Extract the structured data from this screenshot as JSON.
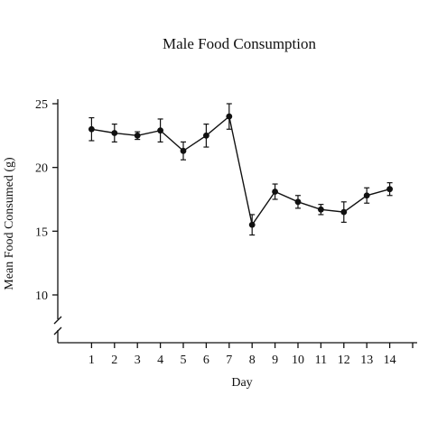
{
  "chart_data": {
    "type": "line",
    "title": "Male Food Consumption",
    "xlabel": "Day",
    "ylabel": "Mean Food Consumed (g)",
    "x": [
      1,
      2,
      3,
      4,
      5,
      6,
      7,
      8,
      9,
      10,
      11,
      12,
      13,
      14
    ],
    "x_ticks": [
      "1",
      "2",
      "3",
      "4",
      "5",
      "6",
      "7",
      "8",
      "9",
      "10",
      "11",
      "12",
      "13",
      "14"
    ],
    "y_ticks": [
      "10",
      "15",
      "20",
      "25"
    ],
    "ylim": [
      10,
      25
    ],
    "xlim": [
      0,
      15
    ],
    "axis_break": true,
    "grid": false,
    "series": [
      {
        "values": [
          23.0,
          22.7,
          22.5,
          22.9,
          21.3,
          22.5,
          24.0,
          15.5,
          18.1,
          17.3,
          16.7,
          16.5,
          17.8,
          18.3
        ],
        "errors": [
          0.9,
          0.7,
          0.3,
          0.9,
          0.7,
          0.9,
          1.0,
          0.8,
          0.6,
          0.5,
          0.4,
          0.8,
          0.6,
          0.5
        ],
        "color": "#111111"
      }
    ]
  }
}
